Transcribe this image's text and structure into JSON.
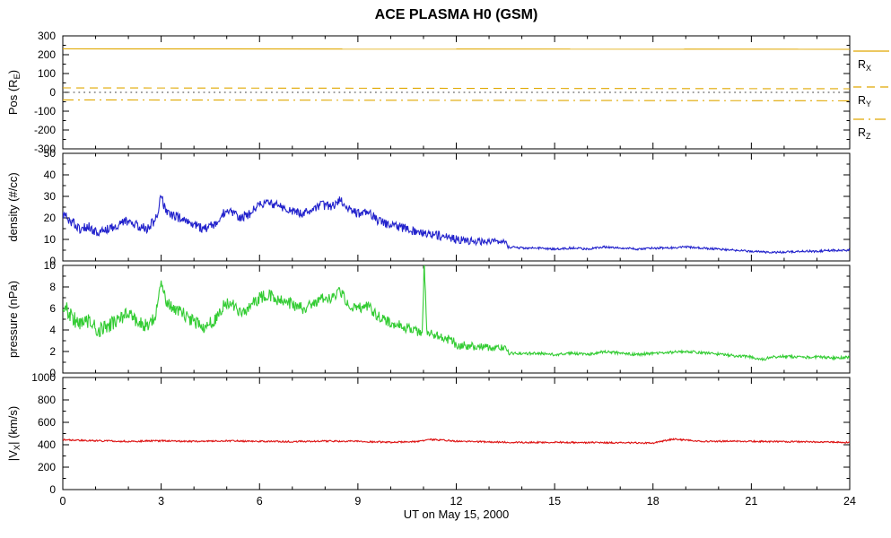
{
  "title": "ACE PLASMA H0 (GSM)",
  "x_axis": {
    "label": "UT on May 15, 2000",
    "lim": [
      0,
      24
    ],
    "ticks": [
      0,
      3,
      6,
      9,
      12,
      15,
      18,
      21,
      24
    ],
    "minor_subdiv": 3
  },
  "colors": {
    "position": "#E0A800",
    "density": "#2222CC",
    "pressure": "#33CC33",
    "velocity": "#DD1111",
    "axis": "#000000",
    "background": "#FFFFFF"
  },
  "legend": {
    "color": "#E0A800",
    "entries": [
      {
        "pre": "R",
        "sub": "X",
        "post": "",
        "style": "solid"
      },
      {
        "pre": "R",
        "sub": "Y",
        "post": "",
        "style": "dash"
      },
      {
        "pre": "R",
        "sub": "Z",
        "post": "",
        "style": "dashdot"
      }
    ]
  },
  "chart_data": [
    {
      "type": "line",
      "name": "position",
      "ylabel": {
        "pre": "Pos (R",
        "sub": "E",
        "post": ")"
      },
      "ylim": [
        -300,
        300
      ],
      "yticks": [
        -300,
        -200,
        -100,
        0,
        100,
        200,
        300
      ],
      "minor_subdiv": 2,
      "series": [
        {
          "name": "rx-position",
          "color": "#E0A800",
          "style": "solid",
          "x": [
            0,
            24
          ],
          "y": [
            231,
            229
          ]
        },
        {
          "name": "ry-position",
          "color": "#E0A800",
          "style": "dash",
          "x": [
            0,
            24
          ],
          "y": [
            24,
            19
          ]
        },
        {
          "name": "rz-position",
          "color": "#E0A800",
          "style": "dashdot",
          "x": [
            0,
            24
          ],
          "y": [
            -40,
            -45
          ]
        },
        {
          "name": "zero-line",
          "color": "#404040",
          "style": "dot",
          "x": [
            0,
            24
          ],
          "y": [
            0,
            0
          ]
        }
      ]
    },
    {
      "type": "line",
      "name": "density",
      "ylabel": {
        "pre": "density (#/cc)",
        "sub": "",
        "post": ""
      },
      "ylim": [
        0,
        50
      ],
      "yticks": [
        0,
        10,
        20,
        30,
        40,
        50
      ],
      "minor_subdiv": 2,
      "series": [
        {
          "name": "proton-density",
          "color": "#2222CC",
          "style": "solid",
          "x": [
            0.0,
            0.2,
            0.5,
            0.8,
            1.1,
            1.4,
            1.7,
            2.0,
            2.3,
            2.6,
            2.85,
            3.0,
            3.15,
            3.4,
            3.7,
            4.0,
            4.3,
            4.6,
            4.9,
            5.1,
            5.4,
            5.7,
            6.0,
            6.3,
            6.7,
            7.0,
            7.3,
            7.6,
            7.9,
            8.2,
            8.45,
            8.7,
            9.0,
            9.3,
            9.6,
            9.9,
            10.2,
            10.5,
            10.8,
            11.1,
            11.4,
            11.7,
            12.0,
            12.3,
            12.7,
            13.1,
            13.5,
            13.58,
            14.0,
            14.5,
            15.0,
            15.5,
            16.0,
            16.5,
            17.0,
            17.5,
            18.0,
            18.5,
            19.0,
            19.5,
            20.0,
            20.5,
            21.0,
            21.5,
            22.0,
            22.5,
            23.0,
            23.5,
            24.0
          ],
          "y": [
            22,
            19,
            15,
            16,
            13,
            15,
            17,
            19,
            16,
            15,
            20,
            30,
            23,
            21,
            19,
            17,
            15,
            17,
            22,
            24,
            20,
            22,
            26,
            27,
            25,
            23,
            22,
            24,
            26,
            25,
            29,
            24,
            22,
            23,
            19,
            17,
            16,
            15,
            13,
            13,
            12,
            11,
            10,
            9.5,
            9,
            9,
            9,
            6.5,
            6,
            6,
            5.5,
            6,
            5.5,
            6.5,
            6,
            5.5,
            6,
            6,
            6.5,
            6,
            5.5,
            5,
            4.5,
            4,
            4,
            4.5,
            4.5,
            5,
            5
          ],
          "noise_x": [
            0,
            12,
            13.4,
            13.7,
            24
          ],
          "noise_y": [
            2.3,
            2.0,
            1.2,
            0.5,
            0.5
          ]
        }
      ]
    },
    {
      "type": "line",
      "name": "pressure",
      "ylabel": {
        "pre": "pressure (nPa)",
        "sub": "",
        "post": ""
      },
      "ylim": [
        0,
        10
      ],
      "yticks": [
        0,
        2,
        4,
        6,
        8,
        10
      ],
      "minor_subdiv": 2,
      "series": [
        {
          "name": "dynamic-pressure",
          "color": "#33CC33",
          "style": "solid",
          "x": [
            0.0,
            0.2,
            0.5,
            0.8,
            1.1,
            1.4,
            1.7,
            2.0,
            2.3,
            2.6,
            2.85,
            3.0,
            3.15,
            3.4,
            3.7,
            4.0,
            4.3,
            4.6,
            4.9,
            5.1,
            5.4,
            5.7,
            6.0,
            6.3,
            6.7,
            7.0,
            7.3,
            7.6,
            7.9,
            8.2,
            8.45,
            8.7,
            9.0,
            9.3,
            9.6,
            9.9,
            10.2,
            10.5,
            10.8,
            10.97,
            11.02,
            11.1,
            11.4,
            11.7,
            12.0,
            12.3,
            12.7,
            13.1,
            13.5,
            13.6,
            14.0,
            14.5,
            15.0,
            15.5,
            16.0,
            16.5,
            17.0,
            17.5,
            18.0,
            18.5,
            19.0,
            19.5,
            20.0,
            20.5,
            21.0,
            21.3,
            21.7,
            22.0,
            22.5,
            23.0,
            23.5,
            24.0
          ],
          "y": [
            6.3,
            5.6,
            4.4,
            4.8,
            4.0,
            4.4,
            5.0,
            5.6,
            4.6,
            4.3,
            5.6,
            8.4,
            6.6,
            6.0,
            5.4,
            4.8,
            4.3,
            4.8,
            6.2,
            6.6,
            5.6,
            6.2,
            7.0,
            7.2,
            6.6,
            6.4,
            6.0,
            6.4,
            7.0,
            6.8,
            7.8,
            6.4,
            6.0,
            6.2,
            5.3,
            4.8,
            4.5,
            4.2,
            3.8,
            3.9,
            10.6,
            3.8,
            3.6,
            3.2,
            2.7,
            2.5,
            2.4,
            2.3,
            2.4,
            1.85,
            1.8,
            1.85,
            1.7,
            1.85,
            1.7,
            2.0,
            1.85,
            1.7,
            1.85,
            1.9,
            2.0,
            1.9,
            1.75,
            1.6,
            1.5,
            1.25,
            1.5,
            1.55,
            1.45,
            1.5,
            1.4,
            1.45
          ],
          "noise_x": [
            0,
            12,
            13.4,
            13.7,
            24
          ],
          "noise_y": [
            0.7,
            0.45,
            0.3,
            0.13,
            0.13
          ]
        }
      ]
    },
    {
      "type": "line",
      "name": "velocity",
      "ylabel": {
        "pre": "|V",
        "sub": "X",
        "post": "| (km/s)"
      },
      "ylim": [
        0,
        1000
      ],
      "yticks": [
        0,
        200,
        400,
        600,
        800,
        1000
      ],
      "minor_subdiv": 2,
      "series": [
        {
          "name": "vx-speed",
          "color": "#DD1111",
          "style": "solid",
          "x": [
            0,
            1,
            2,
            3,
            4,
            5,
            6,
            7,
            8,
            9,
            10,
            10.8,
            11.2,
            12,
            13,
            14,
            15,
            16,
            17,
            18,
            18.6,
            18.8,
            19.5,
            20,
            21,
            22,
            23,
            24
          ],
          "y": [
            445,
            435,
            430,
            435,
            430,
            435,
            430,
            428,
            432,
            430,
            422,
            428,
            448,
            432,
            425,
            420,
            422,
            420,
            418,
            415,
            450,
            445,
            430,
            432,
            430,
            428,
            425,
            420
          ],
          "noise_x": [
            0,
            24
          ],
          "noise_y": [
            7,
            7
          ]
        }
      ]
    }
  ]
}
